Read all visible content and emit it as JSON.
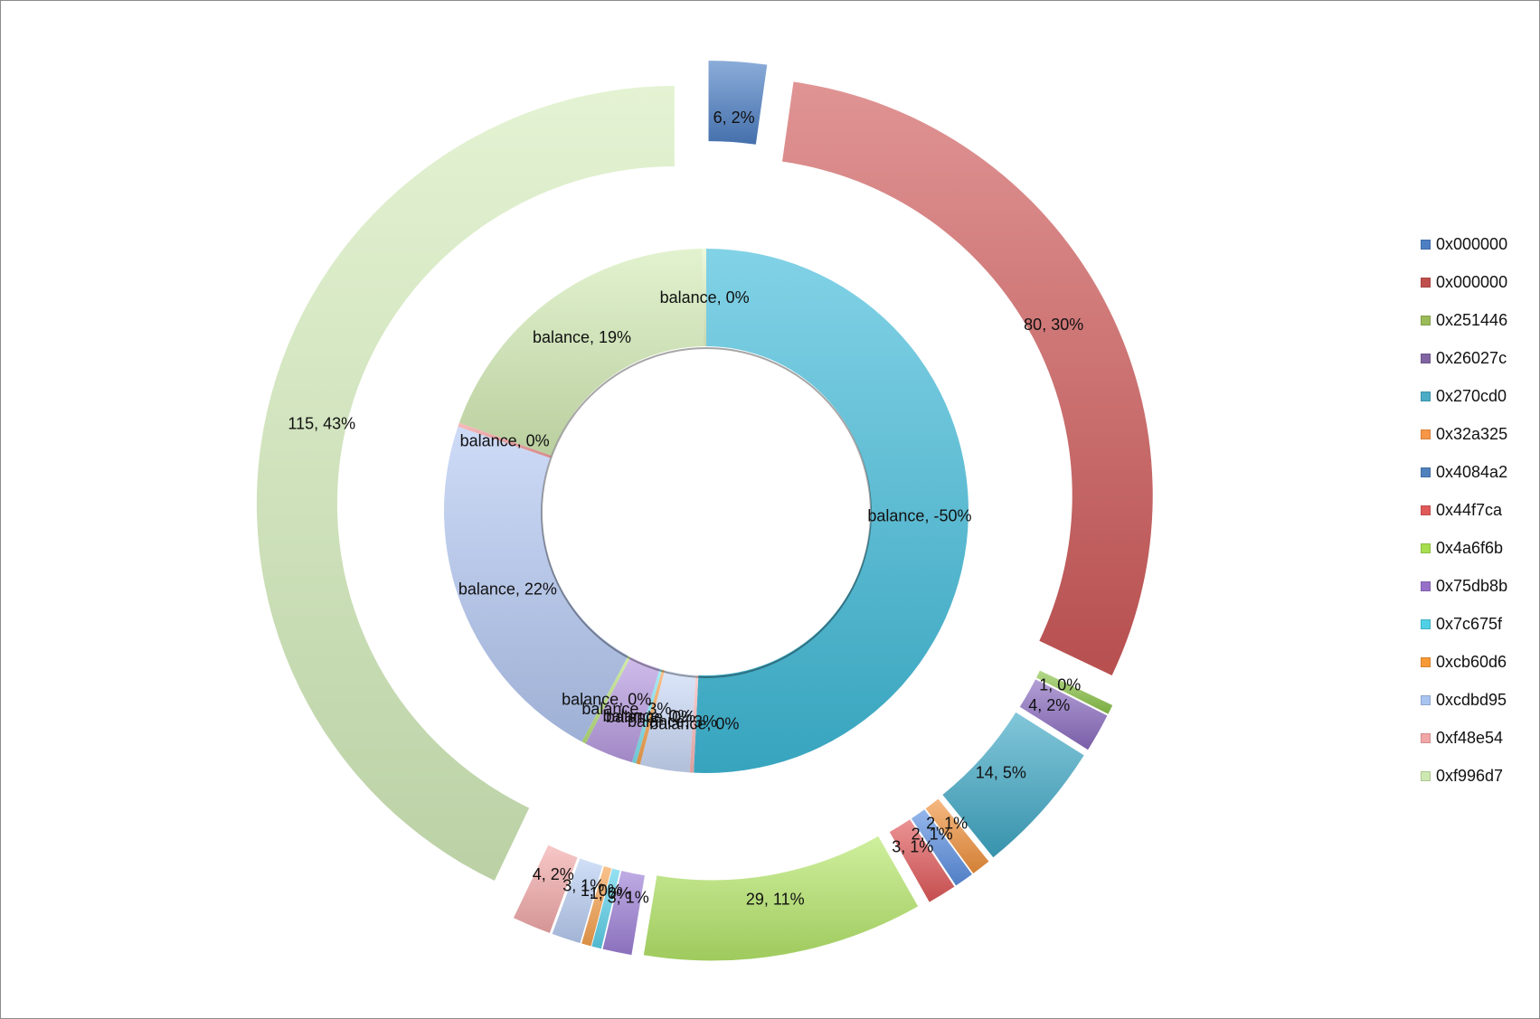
{
  "chart_data": {
    "type": "pie",
    "rings": [
      {
        "ring": "inner",
        "slices": [
          {
            "label": "balance, -50%",
            "value": 50,
            "color": "#3fbad8"
          },
          {
            "label": "balance, 0%",
            "value": 0.25,
            "color": "#f8b6b6"
          },
          {
            "label": "balance, 3%",
            "value": 3,
            "color": "#c9d9f7"
          },
          {
            "label": "balance, 0%",
            "value": 0.25,
            "color": "#f6a14e"
          },
          {
            "label": "balance, 0%",
            "value": 0.25,
            "color": "#7be0ef"
          },
          {
            "label": "balance, 3%",
            "value": 3,
            "color": "#b79ae0"
          },
          {
            "label": "balance, 0%",
            "value": 0.25,
            "color": "#b8e27a"
          },
          {
            "label": "balance, 22%",
            "value": 22,
            "color": "#b4c8f2"
          },
          {
            "label": "balance, 0%",
            "value": 0.25,
            "color": "#f29b9b"
          },
          {
            "label": "balance, 19%",
            "value": 19,
            "color": "#d3ebb5"
          },
          {
            "label": "balance, 0%",
            "value": 0.25,
            "color": "#e3f6c8"
          }
        ]
      },
      {
        "ring": "outer",
        "slices": [
          {
            "label": "6, 2%",
            "value": 6,
            "color": "#4d7fc4"
          },
          {
            "label": "80, 30%",
            "value": 80,
            "color": "#d05a5a"
          },
          {
            "label": "1, 0%",
            "value": 1,
            "color": "#8bc34a"
          },
          {
            "label": "4, 2%",
            "value": 4,
            "color": "#8a6bbf"
          },
          {
            "label": "14, 5%",
            "value": 14,
            "color": "#3fa7c4"
          },
          {
            "label": "2, 1%",
            "value": 2,
            "color": "#f0923d"
          },
          {
            "label": "2, 1%",
            "value": 2,
            "color": "#5b8fe0"
          },
          {
            "label": "3, 1%",
            "value": 3,
            "color": "#e0595a"
          },
          {
            "label": "29, 11%",
            "value": 29,
            "color": "#b5e66a"
          },
          {
            "label": "3, 1%",
            "value": 3,
            "color": "#9d7fd6"
          },
          {
            "label": "1, 0%",
            "value": 1,
            "color": "#5cd1ea"
          },
          {
            "label": "1, 0%",
            "value": 1,
            "color": "#f6a14e"
          },
          {
            "label": "3, 1%",
            "value": 3,
            "color": "#b8cdf2"
          },
          {
            "label": "4, 2%",
            "value": 4,
            "color": "#f2a9a9"
          },
          {
            "label": "115, 43%",
            "value": 115,
            "color": "#d5edbc"
          }
        ]
      }
    ],
    "legend": {
      "position": "right",
      "entries": [
        {
          "name": "0x000000",
          "color": "#4d7fc4"
        },
        {
          "name": "0x000000",
          "color": "#c0504d"
        },
        {
          "name": "0x251446",
          "color": "#9bbb59"
        },
        {
          "name": "0x26027c",
          "color": "#8064a2"
        },
        {
          "name": "0x270cd0",
          "color": "#4bacc6"
        },
        {
          "name": "0x32a325",
          "color": "#f79646"
        },
        {
          "name": "0x4084a2",
          "color": "#4f81bd"
        },
        {
          "name": "0x44f7ca",
          "color": "#e05a5a"
        },
        {
          "name": "0x4a6f6b",
          "color": "#a6de4e"
        },
        {
          "name": "0x75db8b",
          "color": "#9670c8"
        },
        {
          "name": "0x7c675f",
          "color": "#4fd0e6"
        },
        {
          "name": "0xcb60d6",
          "color": "#f79a36"
        },
        {
          "name": "0xcdbd95",
          "color": "#a9c4f0"
        },
        {
          "name": "0xf48e54",
          "color": "#f2a7a7"
        },
        {
          "name": "0xf996d7",
          "color": "#cde8b0"
        }
      ]
    }
  }
}
